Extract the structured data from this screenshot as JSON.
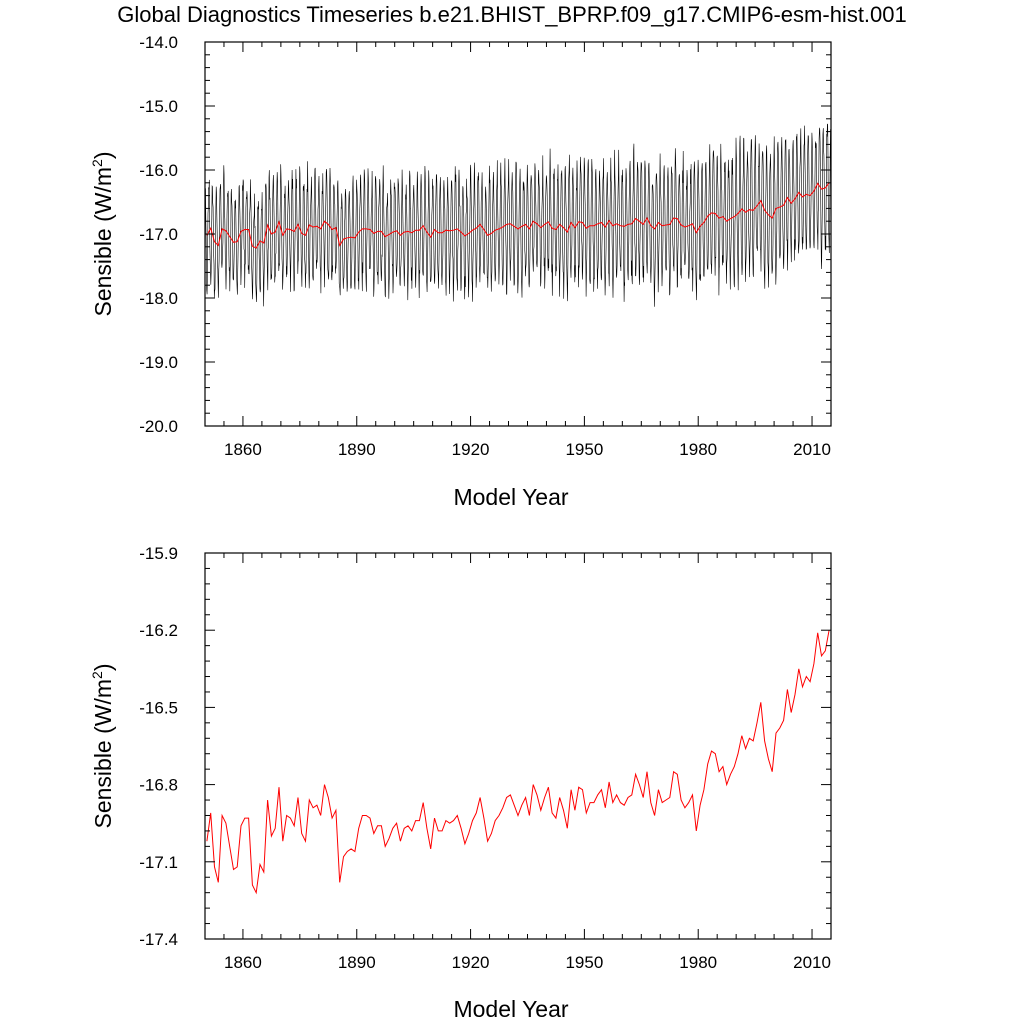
{
  "title": "Global Diagnostics Timeseries b.e21.BHIST_BPRP.f09_g17.CMIP6-esm-hist.001",
  "colors": {
    "monthly": "#000000",
    "annual": "#ff0000"
  },
  "chart_data": [
    {
      "type": "line",
      "xlabel": "Model Year",
      "ylabel": "Sensible (W/m2)",
      "ylabel_main": "Sensible (W/m",
      "ylabel_sup": "2",
      "ylabel_end": ")",
      "xlim": [
        1850,
        2015
      ],
      "ylim": [
        -20.0,
        -14.0
      ],
      "xticks": [
        1860,
        1890,
        1920,
        1950,
        1980,
        2010
      ],
      "xtick_labels": [
        "1860",
        "1890",
        "1920",
        "1950",
        "1980",
        "2010"
      ],
      "yticks": [
        -20.0,
        -19.0,
        -18.0,
        -17.0,
        -16.0,
        -15.0,
        -14.0
      ],
      "ytick_labels": [
        "-20.0",
        "-19.0",
        "-18.0",
        "-17.0",
        "-16.0",
        "-15.0",
        "-14.0"
      ],
      "series": [
        {
          "kind": "monthly",
          "color": "#000000",
          "description_env": "monthly values oscillate seasonally around the annual mean",
          "seasonal_amplitude_start": 0.65,
          "seasonal_amplitude_end": 0.85
        },
        {
          "kind": "annual",
          "color": "#ff0000",
          "values_ref": "annual_mean"
        }
      ]
    },
    {
      "type": "line",
      "xlabel": "Model Year",
      "ylabel": "Sensible (W/m2)",
      "ylabel_main": "Sensible (W/m",
      "ylabel_sup": "2",
      "ylabel_end": ")",
      "xlim": [
        1850,
        2015
      ],
      "ylim": [
        -17.4,
        -15.9
      ],
      "xticks": [
        1860,
        1890,
        1920,
        1950,
        1980,
        2010
      ],
      "xtick_labels": [
        "1860",
        "1890",
        "1920",
        "1950",
        "1980",
        "2010"
      ],
      "yticks": [
        -17.4,
        -17.1,
        -16.8,
        -16.5,
        -16.2,
        -15.9
      ],
      "ytick_labels": [
        "-17.4",
        "-17.1",
        "-16.8",
        "-16.5",
        "-16.2",
        "-15.9"
      ],
      "series": [
        {
          "kind": "annual",
          "color": "#ff0000",
          "values_ref": "annual_mean"
        }
      ]
    }
  ],
  "annual_mean": {
    "x_start": 1850,
    "values": [
      -17.02,
      -16.91,
      -17.12,
      -17.18,
      -16.92,
      -16.95,
      -17.04,
      -17.13,
      -17.12,
      -16.96,
      -16.93,
      -16.93,
      -17.19,
      -17.22,
      -17.11,
      -17.14,
      -16.86,
      -17.0,
      -16.97,
      -16.81,
      -17.02,
      -16.92,
      -16.93,
      -16.96,
      -16.85,
      -16.99,
      -17.02,
      -16.86,
      -16.89,
      -16.88,
      -16.92,
      -16.8,
      -16.85,
      -16.93,
      -16.9,
      -17.18,
      -17.08,
      -17.06,
      -17.05,
      -17.06,
      -16.97,
      -16.92,
      -16.92,
      -16.93,
      -16.99,
      -16.96,
      -16.96,
      -17.04,
      -17.01,
      -16.97,
      -16.95,
      -17.02,
      -16.97,
      -16.96,
      -16.98,
      -16.94,
      -16.94,
      -16.87,
      -16.97,
      -17.05,
      -16.93,
      -16.98,
      -16.98,
      -16.94,
      -16.95,
      -16.94,
      -16.92,
      -16.97,
      -17.03,
      -16.99,
      -16.94,
      -16.91,
      -16.85,
      -16.93,
      -17.02,
      -16.99,
      -16.94,
      -16.92,
      -16.89,
      -16.85,
      -16.84,
      -16.88,
      -16.92,
      -16.88,
      -16.85,
      -16.92,
      -16.8,
      -16.84,
      -16.9,
      -16.85,
      -16.81,
      -16.91,
      -16.93,
      -16.85,
      -16.9,
      -16.97,
      -16.82,
      -16.9,
      -16.81,
      -16.82,
      -16.91,
      -16.87,
      -16.87,
      -16.84,
      -16.82,
      -16.89,
      -16.79,
      -16.87,
      -16.84,
      -16.87,
      -16.88,
      -16.85,
      -16.84,
      -16.76,
      -16.8,
      -16.85,
      -16.75,
      -16.87,
      -16.92,
      -16.82,
      -16.87,
      -16.86,
      -16.85,
      -16.75,
      -16.76,
      -16.86,
      -16.89,
      -16.87,
      -16.84,
      -16.98,
      -16.88,
      -16.82,
      -16.72,
      -16.67,
      -16.68,
      -16.75,
      -16.73,
      -16.8,
      -16.76,
      -16.73,
      -16.68,
      -16.61,
      -16.66,
      -16.62,
      -16.63,
      -16.56,
      -16.48,
      -16.63,
      -16.7,
      -16.75,
      -16.6,
      -16.58,
      -16.55,
      -16.43,
      -16.52,
      -16.45,
      -16.35,
      -16.42,
      -16.38,
      -16.4,
      -16.33,
      -16.21,
      -16.3,
      -16.28,
      -16.2
    ]
  }
}
